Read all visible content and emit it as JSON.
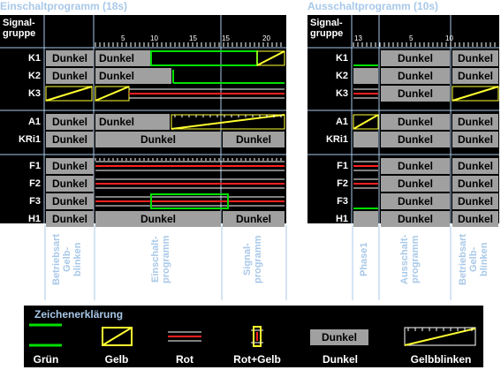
{
  "titles": {
    "on": "Einschaltprogramm (18s)",
    "off": "Ausschaltprogramm (10s)"
  },
  "header_label": "Signal-\ngruppe",
  "groups": [
    "K1",
    "K2",
    "K3",
    "A1",
    "KRi1",
    "F1",
    "F2",
    "F3",
    "H1"
  ],
  "left": {
    "ticks": [
      "5",
      "10",
      "15",
      "15",
      "20"
    ],
    "dunkel": "Dunkel",
    "phase_labels": [
      "Betriebsart\nGelb-\nblinken",
      "Einschalt-\nprogramm",
      "Signal-\nprogramm"
    ]
  },
  "right": {
    "ticks": [
      "13",
      "5",
      "10"
    ],
    "dunkel": "Dunkel",
    "phase_labels": [
      "Phase1",
      "Ausschalt-\nprogramm",
      "Betriebsart\nGelb-\nblinken"
    ]
  },
  "legend": {
    "title": "Zeichenerklärung",
    "items": [
      "Grün",
      "Gelb",
      "Rot",
      "Rot+Gelb",
      "Dunkel",
      "Gelbblinken"
    ],
    "dunkel_sample": "Dunkel"
  },
  "colors": {
    "green": "#00e000",
    "yellow": "#ffff30",
    "red": "#ff2020",
    "gray": "#a0a0a0",
    "title": "#a8c8e8"
  }
}
